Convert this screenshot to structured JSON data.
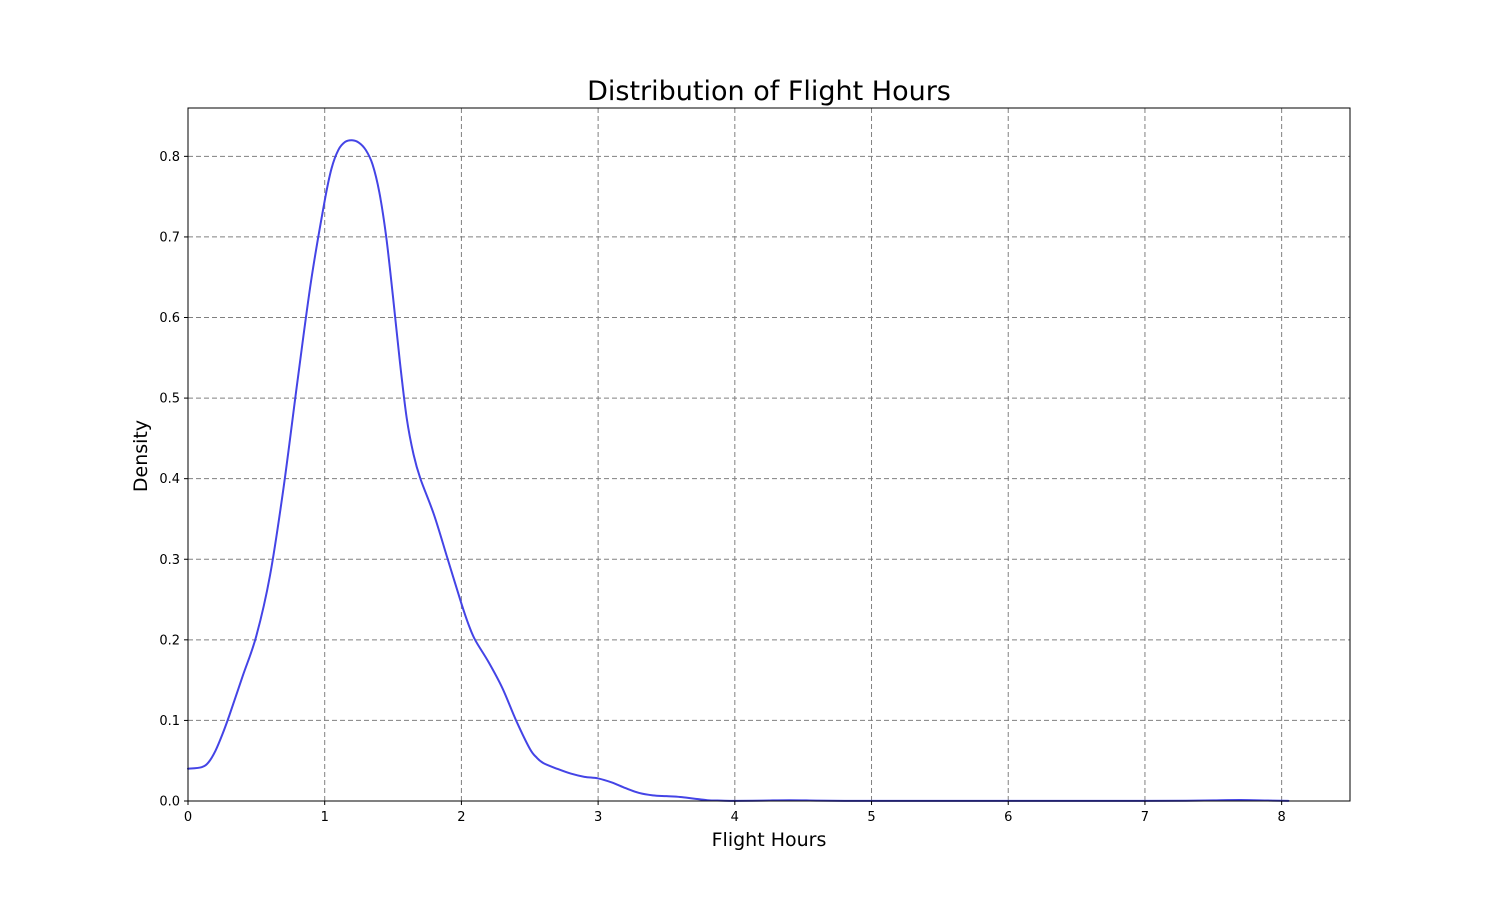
{
  "chart_data": {
    "type": "line",
    "title": "Distribution of Flight Hours",
    "xlabel": "Flight Hours",
    "ylabel": "Density",
    "xlim": [
      0,
      8.5
    ],
    "ylim": [
      0,
      0.86
    ],
    "x_ticks": [
      0,
      1,
      2,
      3,
      4,
      5,
      6,
      7,
      8
    ],
    "x_tick_labels": [
      "0",
      "1",
      "2",
      "3",
      "4",
      "5",
      "6",
      "7",
      "8"
    ],
    "y_ticks": [
      0.0,
      0.1,
      0.2,
      0.3,
      0.4,
      0.5,
      0.6,
      0.7,
      0.8
    ],
    "y_tick_labels": [
      "0.0",
      "0.1",
      "0.2",
      "0.3",
      "0.4",
      "0.5",
      "0.6",
      "0.7",
      "0.8"
    ],
    "grid": true,
    "line_color": "#4444e6",
    "series": [
      {
        "x": [
          0,
          0.1,
          0.15,
          0.2,
          0.25,
          0.3,
          0.4,
          0.5,
          0.6,
          0.7,
          0.8,
          0.9,
          1.0,
          1.05,
          1.1,
          1.15,
          1.2,
          1.25,
          1.3,
          1.35,
          1.4,
          1.45,
          1.5,
          1.55,
          1.6,
          1.65,
          1.7,
          1.8,
          1.9,
          2.0,
          2.05,
          2.1,
          2.2,
          2.3,
          2.4,
          2.5,
          2.55,
          2.6,
          2.7,
          2.8,
          2.9,
          3.0,
          3.1,
          3.2,
          3.3,
          3.4,
          3.5,
          3.6,
          3.7,
          3.8,
          3.9,
          4.0,
          4.2,
          4.4,
          4.6,
          4.8,
          5.0,
          5.5,
          6.0,
          6.5,
          7.0,
          7.3,
          7.5,
          7.7,
          7.9,
          8.05
        ],
        "y": [
          0.04,
          0.042,
          0.048,
          0.062,
          0.082,
          0.105,
          0.155,
          0.205,
          0.28,
          0.39,
          0.52,
          0.645,
          0.745,
          0.785,
          0.808,
          0.818,
          0.82,
          0.817,
          0.808,
          0.79,
          0.755,
          0.7,
          0.625,
          0.545,
          0.475,
          0.43,
          0.4,
          0.355,
          0.3,
          0.245,
          0.22,
          0.2,
          0.172,
          0.14,
          0.1,
          0.065,
          0.054,
          0.047,
          0.04,
          0.034,
          0.03,
          0.028,
          0.023,
          0.016,
          0.01,
          0.007,
          0.006,
          0.005,
          0.003,
          0.001,
          0.0005,
          0.0002,
          0.0005,
          0.001,
          0.0005,
          0.0002,
          0.0001,
          0.0001,
          0.0001,
          0.0001,
          0.0001,
          0.0003,
          0.0008,
          0.0012,
          0.0006,
          0.0002
        ]
      }
    ]
  }
}
